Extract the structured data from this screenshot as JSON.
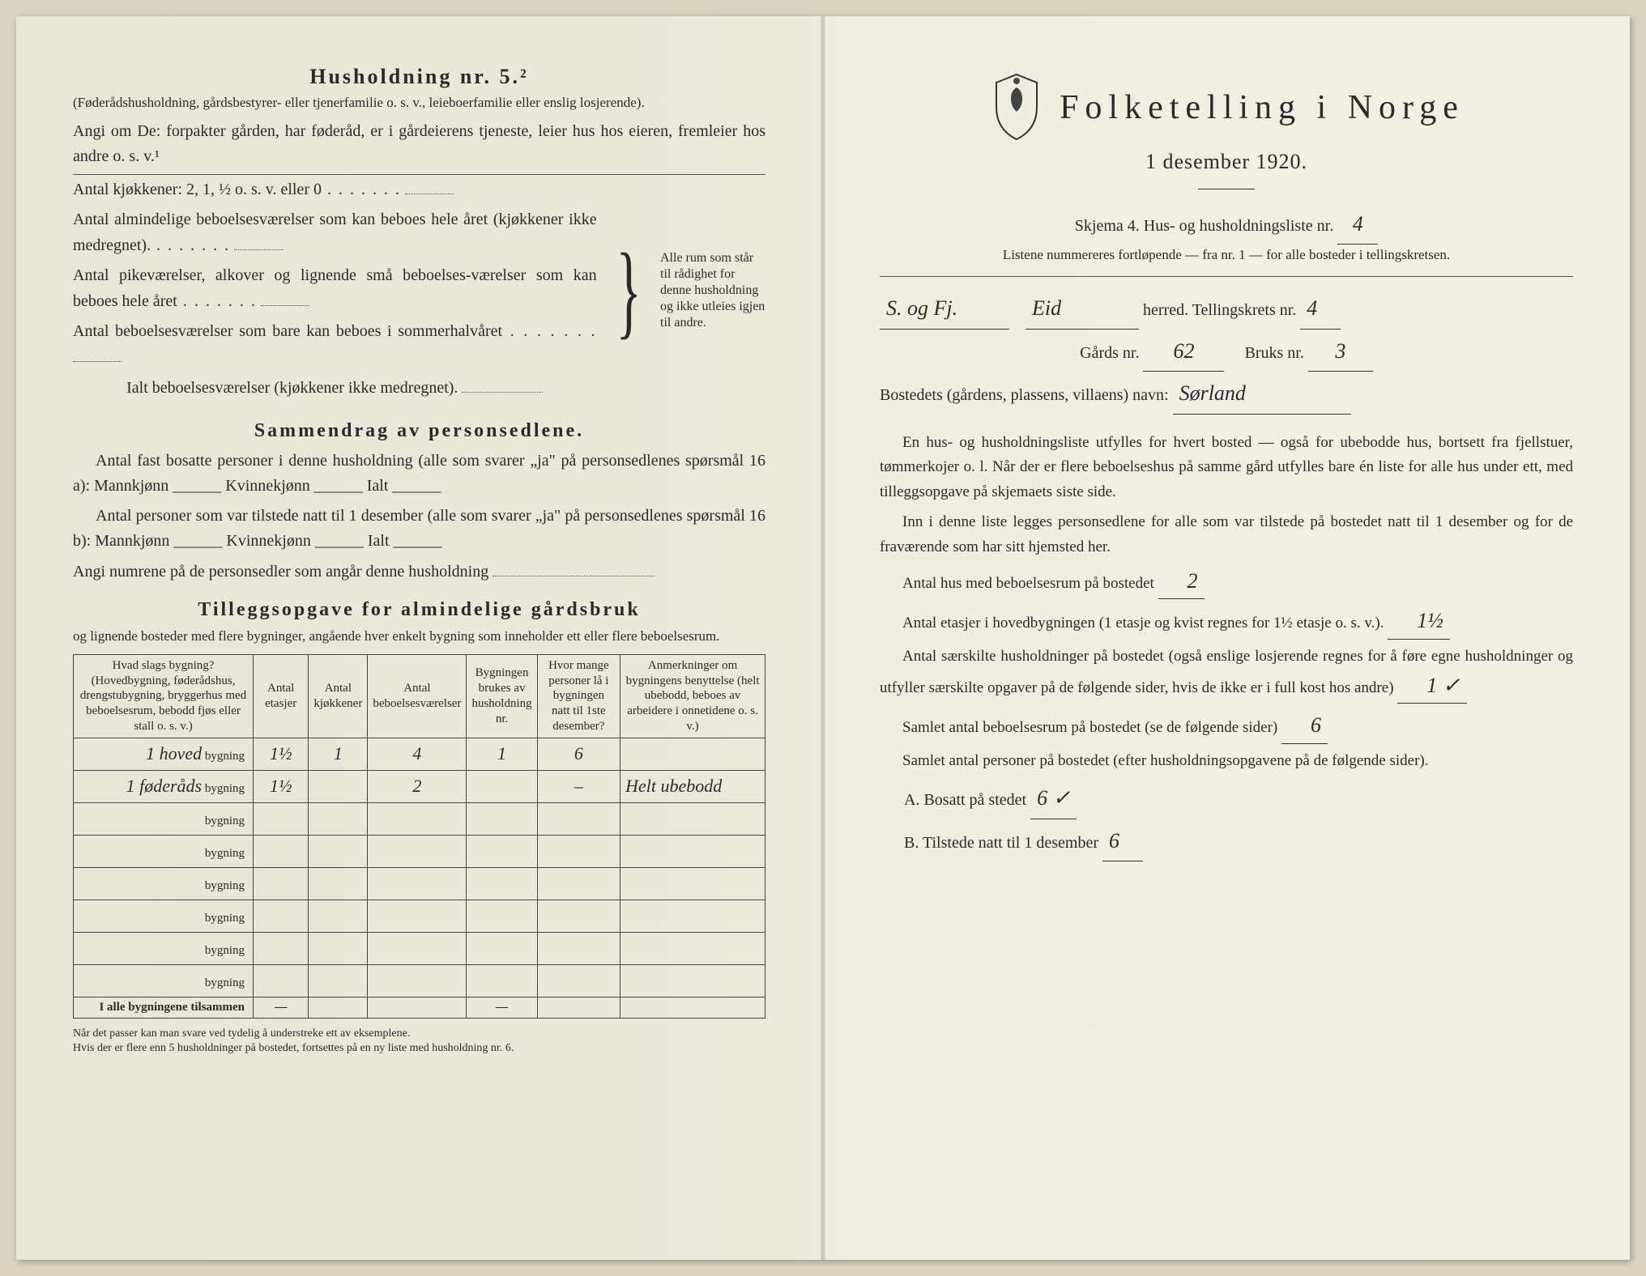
{
  "left": {
    "heading": "Husholdning nr. 5.²",
    "sub1": "(Føderådshusholdning, gårdsbestyrer- eller tjenerfamilie o. s. v., leieboerfamilie eller enslig losjerende).",
    "sub2": "Angi om De: forpakter gården, har føderåd, er i gårdeierens tjeneste, leier hus hos eieren, fremleier hos andre o. s. v.¹",
    "rooms": {
      "l1": "Antal kjøkkener: 2, 1, ½ o. s. v. eller 0",
      "l2": "Antal almindelige beboelsesværelser som kan beboes hele året (kjøkkener ikke medregnet).",
      "l3": "Antal pikeværelser, alkover og lignende små beboelses-værelser som kan beboes hele året",
      "l4": "Antal beboelsesværelser som bare kan beboes i sommerhalvåret",
      "l5": "Ialt beboelsesværelser (kjøkkener ikke medregnet).",
      "brace_text": "Alle rum som står til rådighet for denne husholdning og ikke utleies igjen til andre."
    },
    "summary_title": "Sammendrag av personsedlene.",
    "summary_p1": "Antal fast bosatte personer i denne husholdning (alle som svarer „ja\" på personsedlenes spørsmål 16 a): Mannkjønn ______ Kvinnekjønn ______ Ialt ______",
    "summary_p2": "Antal personer som var tilstede natt til 1 desember (alle som svarer „ja\" på personsedlenes spørsmål 16 b): Mannkjønn ______ Kvinnekjønn ______ Ialt ______",
    "summary_p3": "Angi numrene på de personsedler som angår denne husholdning",
    "tillegg_title": "Tilleggsopgave for almindelige gårdsbruk",
    "tillegg_sub": "og lignende bosteder med flere bygninger, angående hver enkelt bygning som inneholder ett eller flere beboelsesrum.",
    "table": {
      "headers": {
        "c1": "Hvad slags bygning?\n(Hovedbygning, føderådshus, drengstubygning, bryggerhus med beboelsesrum, bebodd fjøs eller stall o. s. v.)",
        "c2": "Antal etasjer",
        "c3": "Antal kjøkkener",
        "c4": "Antal beboelsesværelser",
        "c5": "Bygningen brukes av husholdning nr.",
        "c6": "Hvor mange personer lå i bygningen natt til 1ste desember?",
        "c7": "Anmerkninger om bygningens benyttelse (helt ubebodd, beboes av arbeidere i onnetidene o. s. v.)"
      },
      "rows": [
        {
          "prefix_hand": "1 hoved",
          "suffix": "bygning",
          "etasjer": "1½",
          "kjokken": "1",
          "bebo": "4",
          "hush": "1",
          "persons": "6",
          "note": ""
        },
        {
          "prefix_hand": "1 føderåds",
          "suffix": "bygning",
          "etasjer": "1½",
          "kjokken": "",
          "bebo": "2",
          "hush": "",
          "persons": "–",
          "note": "Helt ubebodd"
        },
        {
          "prefix_hand": "",
          "suffix": "bygning",
          "etasjer": "",
          "kjokken": "",
          "bebo": "",
          "hush": "",
          "persons": "",
          "note": ""
        },
        {
          "prefix_hand": "",
          "suffix": "bygning",
          "etasjer": "",
          "kjokken": "",
          "bebo": "",
          "hush": "",
          "persons": "",
          "note": ""
        },
        {
          "prefix_hand": "",
          "suffix": "bygning",
          "etasjer": "",
          "kjokken": "",
          "bebo": "",
          "hush": "",
          "persons": "",
          "note": ""
        },
        {
          "prefix_hand": "",
          "suffix": "bygning",
          "etasjer": "",
          "kjokken": "",
          "bebo": "",
          "hush": "",
          "persons": "",
          "note": ""
        },
        {
          "prefix_hand": "",
          "suffix": "bygning",
          "etasjer": "",
          "kjokken": "",
          "bebo": "",
          "hush": "",
          "persons": "",
          "note": ""
        },
        {
          "prefix_hand": "",
          "suffix": "bygning",
          "etasjer": "",
          "kjokken": "",
          "bebo": "",
          "hush": "",
          "persons": "",
          "note": ""
        }
      ],
      "sum_label": "I alle bygningene tilsammen",
      "dash": "—"
    },
    "footnote": "Når det passer kan man svare ved tydelig å understreke ett av eksemplene.\nHvis der er flere enn 5 husholdninger på bostedet, fortsettes på en ny liste med husholdning nr. 6."
  },
  "right": {
    "title": "Folketelling i Norge",
    "subtitle": "1 desember 1920.",
    "skjema": "Skjema 4.   Hus- og husholdningsliste nr.",
    "skjema_nr": "4",
    "listene": "Listene nummereres fortløpende — fra nr. 1 — for alle bosteder i tellingskretsen.",
    "county_hand": "S. og Fj.",
    "herred_hand": "Eid",
    "herred_label": "herred.   Tellingskrets nr.",
    "krets_nr": "4",
    "gards_label": "Gårds nr.",
    "gards_nr": "62",
    "bruks_label": "Bruks nr.",
    "bruks_nr": "3",
    "bosted_label": "Bostedets (gårdens, plassens, villaens) navn:",
    "bosted_name": "Sørland",
    "p1": "En hus- og husholdningsliste utfylles for hvert bosted — også for ubebodde hus, bortsett fra fjellstuer, tømmerkojer o. l.  Når der er flere beboelseshus på samme gård utfylles bare én liste for alle hus under ett, med tilleggsopgave på skjemaets siste side.",
    "p2": "Inn i denne liste legges personsedlene for alle som var tilstede på bostedet natt til 1 desember og for de fraværende som har sitt hjemsted her.",
    "antal_hus_label": "Antal hus med beboelsesrum på bostedet",
    "antal_hus": "2",
    "etasjer_label": "Antal etasjer i hovedbygningen (1 etasje og kvist regnes for 1½ etasje o. s. v.).",
    "etasjer": "1½",
    "saerskilte": "Antal særskilte husholdninger på bostedet (også enslige losjerende regnes for å føre egne husholdninger og utfyller særskilte opgaver på de følgende sider, hvis de ikke er i full kost hos andre)",
    "saerskilte_val": "1 ✓",
    "samlet_rum_label": "Samlet antal beboelsesrum på bostedet (se de følgende sider)",
    "samlet_rum": "6",
    "samlet_pers_label": "Samlet antal personer på bostedet (efter husholdningsopgavene på de følgende sider).",
    "a_label": "A.  Bosatt på stedet",
    "a_val": "6 ✓",
    "b_label": "B.  Tilstede natt til 1 desember",
    "b_val": "6"
  },
  "colors": {
    "paper": "#ece9db",
    "ink": "#2a2a2a",
    "hand": "#2b2b2b"
  }
}
